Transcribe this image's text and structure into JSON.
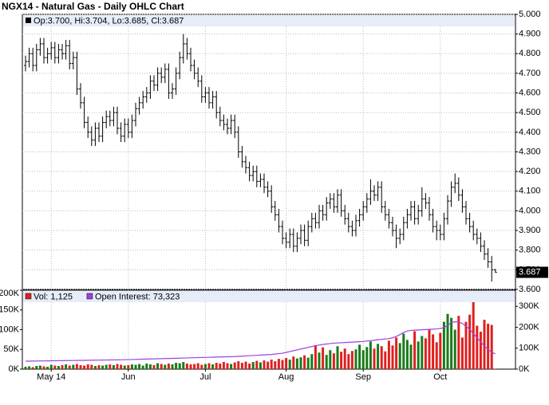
{
  "chart_data": [
    {
      "type": "ohlc",
      "title": "NGX14 - Natural Gas - Daily OHLC Chart",
      "grid": true,
      "legend_bg": "#e6ecf8",
      "categories": [
        null,
        null,
        null,
        null,
        null,
        null,
        null,
        "May 14",
        null,
        null,
        null,
        null,
        null,
        null,
        null,
        null,
        null,
        null,
        null,
        null,
        null,
        null,
        null,
        null,
        null,
        null,
        null,
        null,
        "Jun",
        null,
        null,
        null,
        null,
        null,
        null,
        null,
        null,
        null,
        null,
        null,
        null,
        null,
        null,
        null,
        null,
        null,
        null,
        null,
        null,
        "Jul",
        null,
        null,
        null,
        null,
        null,
        null,
        null,
        null,
        null,
        null,
        null,
        null,
        null,
        null,
        null,
        null,
        null,
        null,
        null,
        null,
        null,
        "Aug",
        null,
        null,
        null,
        null,
        null,
        null,
        null,
        null,
        null,
        null,
        null,
        null,
        null,
        null,
        null,
        null,
        null,
        null,
        null,
        null,
        "Sep",
        null,
        null,
        null,
        null,
        null,
        null,
        null,
        null,
        null,
        null,
        null,
        null,
        null,
        null,
        null,
        null,
        null,
        null,
        null,
        null,
        "Oct",
        null,
        null,
        null,
        null,
        null,
        null,
        null,
        null,
        null,
        null,
        null,
        null,
        null,
        null,
        null
      ],
      "ylim": [
        3.6,
        5.0
      ],
      "yticks": [
        {
          "value": 3.6,
          "label": "3.600"
        },
        {
          "value": 3.7,
          "label": "3.700"
        },
        {
          "value": 3.8,
          "label": "3.800"
        },
        {
          "value": 3.9,
          "label": "3.900"
        },
        {
          "value": 4.0,
          "label": "4.000"
        },
        {
          "value": 4.1,
          "label": "4.100"
        },
        {
          "value": 4.2,
          "label": "4.200"
        },
        {
          "value": 4.3,
          "label": "4.300"
        },
        {
          "value": 4.4,
          "label": "4.400"
        },
        {
          "value": 4.5,
          "label": "4.500"
        },
        {
          "value": 4.6,
          "label": "4.600"
        },
        {
          "value": 4.7,
          "label": "4.700"
        },
        {
          "value": 4.8,
          "label": "4.800"
        },
        {
          "value": 4.9,
          "label": "4.900"
        },
        {
          "value": 5.0,
          "label": "5.000"
        }
      ],
      "series": [
        {
          "name": "Op:3.700, Hi:3.704, Lo:3.685, Cl:3.687",
          "color": "#000000",
          "open": [
            4.74,
            4.76,
            4.8,
            4.74,
            4.82,
            4.85,
            4.78,
            4.8,
            4.83,
            4.78,
            4.82,
            4.8,
            4.84,
            4.75,
            4.78,
            4.62,
            4.55,
            4.45,
            4.4,
            4.36,
            4.42,
            4.38,
            4.45,
            4.48,
            4.46,
            4.5,
            4.42,
            4.38,
            4.44,
            4.4,
            4.46,
            4.52,
            4.55,
            4.58,
            4.6,
            4.66,
            4.64,
            4.7,
            4.68,
            4.72,
            4.6,
            4.62,
            4.7,
            4.78,
            4.85,
            4.8,
            4.74,
            4.7,
            4.66,
            4.58,
            4.6,
            4.55,
            4.58,
            4.5,
            4.46,
            4.44,
            4.42,
            4.46,
            4.4,
            4.3,
            4.25,
            4.22,
            4.18,
            4.2,
            4.15,
            4.16,
            4.12,
            4.1,
            4.02,
            3.98,
            3.92,
            3.86,
            3.84,
            3.88,
            3.82,
            3.86,
            3.9,
            3.85,
            3.92,
            3.96,
            3.94,
            4.0,
            3.98,
            4.04,
            4.06,
            4.02,
            4.08,
            4.0,
            3.96,
            3.92,
            3.9,
            3.95,
            3.98,
            4.02,
            4.06,
            4.1,
            4.08,
            4.12,
            4.02,
            3.98,
            3.94,
            3.9,
            3.86,
            3.88,
            3.94,
            3.98,
            4.02,
            3.96,
            4.0,
            4.06,
            4.04,
            3.98,
            3.92,
            3.9,
            3.88,
            3.96,
            4.05,
            4.12,
            4.14,
            4.08,
            4.02,
            3.96,
            3.92,
            3.88,
            3.86,
            3.82,
            3.78,
            3.74,
            3.7
          ],
          "high": [
            4.79,
            4.83,
            4.83,
            4.85,
            4.88,
            4.88,
            4.83,
            4.86,
            4.86,
            4.85,
            4.85,
            4.87,
            4.87,
            4.81,
            4.81,
            4.65,
            4.58,
            4.48,
            4.43,
            4.45,
            4.45,
            4.48,
            4.51,
            4.51,
            4.53,
            4.53,
            4.45,
            4.47,
            4.47,
            4.49,
            4.55,
            4.58,
            4.61,
            4.63,
            4.69,
            4.69,
            4.73,
            4.73,
            4.75,
            4.75,
            4.65,
            4.73,
            4.81,
            4.9,
            4.88,
            4.83,
            4.77,
            4.73,
            4.69,
            4.63,
            4.63,
            4.61,
            4.61,
            4.53,
            4.49,
            4.47,
            4.49,
            4.49,
            4.43,
            4.33,
            4.28,
            4.25,
            4.23,
            4.23,
            4.19,
            4.19,
            4.15,
            4.13,
            4.05,
            4.01,
            3.95,
            3.89,
            3.91,
            3.91,
            3.89,
            3.93,
            3.93,
            3.95,
            3.99,
            3.99,
            4.03,
            4.03,
            4.07,
            4.09,
            4.09,
            4.11,
            4.11,
            4.03,
            3.99,
            3.95,
            3.98,
            4.01,
            4.05,
            4.09,
            4.16,
            4.13,
            4.15,
            4.15,
            4.05,
            4.01,
            3.97,
            3.93,
            3.91,
            3.97,
            4.01,
            4.05,
            4.05,
            4.03,
            4.12,
            4.09,
            4.07,
            4.01,
            3.95,
            3.93,
            3.99,
            4.08,
            4.15,
            4.19,
            4.17,
            4.11,
            4.05,
            3.99,
            3.95,
            3.91,
            3.89,
            3.85,
            3.81,
            3.77,
            3.704
          ],
          "low": [
            4.71,
            4.73,
            4.71,
            4.71,
            4.79,
            4.75,
            4.75,
            4.77,
            4.75,
            4.75,
            4.77,
            4.77,
            4.72,
            4.72,
            4.59,
            4.52,
            4.42,
            4.37,
            4.33,
            4.33,
            4.35,
            4.35,
            4.42,
            4.43,
            4.43,
            4.39,
            4.35,
            4.35,
            4.37,
            4.37,
            4.43,
            4.49,
            4.52,
            4.55,
            4.57,
            4.61,
            4.61,
            4.65,
            4.65,
            4.57,
            4.57,
            4.59,
            4.67,
            4.75,
            4.77,
            4.71,
            4.67,
            4.63,
            4.55,
            4.55,
            4.52,
            4.52,
            4.47,
            4.43,
            4.41,
            4.39,
            4.39,
            4.37,
            4.27,
            4.22,
            4.19,
            4.15,
            4.15,
            4.12,
            4.12,
            4.09,
            4.07,
            3.99,
            3.95,
            3.89,
            3.83,
            3.81,
            3.81,
            3.79,
            3.79,
            3.83,
            3.82,
            3.82,
            3.89,
            3.91,
            3.91,
            3.95,
            3.95,
            4.01,
            3.99,
            3.99,
            3.97,
            3.93,
            3.89,
            3.87,
            3.87,
            3.92,
            3.95,
            3.99,
            4.03,
            4.05,
            4.05,
            3.99,
            3.95,
            3.91,
            3.87,
            3.81,
            3.83,
            3.85,
            3.91,
            3.95,
            3.93,
            3.93,
            3.97,
            4.01,
            3.95,
            3.89,
            3.85,
            3.85,
            3.85,
            3.93,
            4.02,
            4.09,
            4.05,
            3.99,
            3.93,
            3.89,
            3.85,
            3.83,
            3.79,
            3.75,
            3.71,
            3.64,
            3.685
          ],
          "close": [
            4.76,
            4.8,
            4.74,
            4.82,
            4.85,
            4.78,
            4.8,
            4.83,
            4.78,
            4.82,
            4.8,
            4.84,
            4.75,
            4.78,
            4.62,
            4.55,
            4.45,
            4.4,
            4.36,
            4.42,
            4.38,
            4.45,
            4.48,
            4.46,
            4.5,
            4.42,
            4.38,
            4.44,
            4.4,
            4.46,
            4.52,
            4.55,
            4.58,
            4.6,
            4.66,
            4.64,
            4.7,
            4.68,
            4.72,
            4.6,
            4.62,
            4.7,
            4.78,
            4.85,
            4.8,
            4.74,
            4.7,
            4.66,
            4.58,
            4.6,
            4.55,
            4.58,
            4.5,
            4.46,
            4.44,
            4.42,
            4.46,
            4.4,
            4.3,
            4.25,
            4.22,
            4.18,
            4.2,
            4.15,
            4.16,
            4.12,
            4.1,
            4.02,
            3.98,
            3.92,
            3.86,
            3.84,
            3.88,
            3.82,
            3.86,
            3.9,
            3.85,
            3.92,
            3.96,
            3.94,
            4.0,
            3.98,
            4.04,
            4.06,
            4.02,
            4.08,
            4.0,
            3.96,
            3.92,
            3.9,
            3.95,
            3.98,
            4.02,
            4.06,
            4.1,
            4.08,
            4.12,
            4.02,
            3.98,
            3.94,
            3.9,
            3.86,
            3.88,
            3.94,
            3.98,
            4.02,
            3.96,
            4.0,
            4.06,
            4.04,
            3.98,
            3.92,
            3.9,
            3.88,
            3.96,
            4.05,
            4.12,
            4.14,
            4.08,
            4.02,
            3.96,
            3.92,
            3.88,
            3.86,
            3.82,
            3.78,
            3.74,
            3.7,
            3.687
          ]
        }
      ]
    },
    {
      "type": "volume",
      "legend_bg": "#e6ecf8",
      "ylim": [
        0,
        200000
      ],
      "yticks": [
        {
          "value": 0,
          "label": "0K"
        },
        {
          "value": 50000,
          "label": "50K"
        },
        {
          "value": 100000,
          "label": "100K"
        },
        {
          "value": 150000,
          "label": "150K"
        },
        {
          "value": 200000,
          "label": "200K"
        }
      ],
      "y2lim": [
        0,
        377000
      ],
      "y2ticks": [
        {
          "value": 0,
          "label": "0K"
        },
        {
          "value": 100000,
          "label": "100K"
        },
        {
          "value": 200000,
          "label": "200K"
        },
        {
          "value": 300000,
          "label": "300K"
        }
      ],
      "series": [
        {
          "name": "Vol: 1,125",
          "color": "#e02020",
          "up_color": "#1a7a1a",
          "values": [
            6000,
            7000,
            5000,
            8000,
            9000,
            7000,
            6000,
            11000,
            9000,
            8000,
            10000,
            12000,
            9000,
            11000,
            13000,
            10000,
            9000,
            12000,
            11000,
            8000,
            10000,
            9000,
            11000,
            12000,
            10000,
            13000,
            11000,
            9000,
            10000,
            12000,
            11000,
            13000,
            9000,
            14000,
            12000,
            10000,
            15000,
            13000,
            11000,
            14000,
            12000,
            16000,
            15000,
            18000,
            14000,
            12000,
            13000,
            15000,
            11000,
            13000,
            15000,
            12000,
            16000,
            14000,
            18000,
            15000,
            13000,
            17000,
            20000,
            16000,
            19000,
            14000,
            18000,
            21000,
            17000,
            22000,
            19000,
            24000,
            20000,
            26000,
            23000,
            28000,
            24000,
            32000,
            27000,
            30000,
            35000,
            29000,
            38000,
            60000,
            42000,
            55000,
            36000,
            48000,
            40000,
            58000,
            44000,
            52000,
            38000,
            46000,
            50000,
            62000,
            48000,
            56000,
            70000,
            52000,
            64000,
            58000,
            45000,
            72000,
            60000,
            80000,
            66000,
            90000,
            74000,
            62000,
            96000,
            70000,
            84000,
            78000,
            100000,
            88000,
            68000,
            92000,
            120000,
            140000,
            130000,
            100000,
            135000,
            80000,
            120000,
            138000,
            170000,
            110000,
            95000,
            125000,
            115000,
            112000,
            1125
          ]
        },
        {
          "name": "Open Interest: 73,323",
          "color": "#a040e0",
          "axis": "y2",
          "values": [
            38000,
            38200,
            38500,
            38700,
            39000,
            39200,
            39500,
            39800,
            40000,
            40200,
            40500,
            40800,
            41000,
            41200,
            41500,
            41800,
            42000,
            42300,
            42500,
            42800,
            43000,
            43300,
            43500,
            43800,
            44000,
            44300,
            44600,
            45000,
            45500,
            46000,
            46500,
            47000,
            47500,
            48000,
            48500,
            49000,
            49500,
            50000,
            50500,
            51000,
            51500,
            52000,
            52500,
            53000,
            53500,
            54000,
            54500,
            55000,
            55500,
            56000,
            56500,
            57000,
            57500,
            58000,
            58500,
            59000,
            59500,
            60000,
            61000,
            62000,
            63000,
            64000,
            65000,
            66000,
            67000,
            68000,
            69000,
            70000,
            72000,
            74000,
            76000,
            80000,
            84000,
            88000,
            92000,
            96000,
            100000,
            104000,
            108000,
            112000,
            115000,
            118000,
            120000,
            122000,
            124000,
            125000,
            126000,
            127000,
            128000,
            129000,
            130000,
            131000,
            132000,
            134000,
            136000,
            138000,
            140000,
            142000,
            144000,
            146000,
            150000,
            156000,
            165000,
            175000,
            182000,
            185000,
            186000,
            187000,
            188000,
            189000,
            190000,
            191000,
            192000,
            194000,
            198000,
            210000,
            222000,
            226000,
            225000,
            218000,
            205000,
            190000,
            170000,
            150000,
            130000,
            110000,
            95000,
            80000,
            73323
          ]
        }
      ]
    }
  ]
}
